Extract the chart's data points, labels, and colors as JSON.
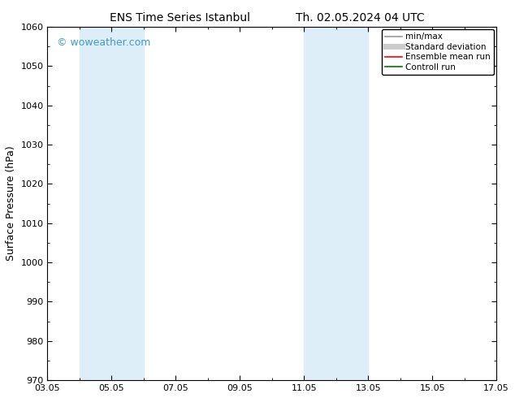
{
  "title_left": "ENS Time Series Istanbul",
  "title_right": "Th. 02.05.2024 04 UTC",
  "ylabel": "Surface Pressure (hPa)",
  "ylim": [
    970,
    1060
  ],
  "yticks": [
    970,
    980,
    990,
    1000,
    1010,
    1020,
    1030,
    1040,
    1050,
    1060
  ],
  "xlim": [
    0,
    14
  ],
  "xtick_labels": [
    "03.05",
    "05.05",
    "07.05",
    "09.05",
    "11.05",
    "13.05",
    "15.05",
    "17.05"
  ],
  "xtick_positions": [
    0,
    2,
    4,
    6,
    8,
    10,
    12,
    14
  ],
  "shade_bands": [
    {
      "start": 1.0,
      "end": 3.0
    },
    {
      "start": 8.0,
      "end": 10.0
    }
  ],
  "shade_color": "#ddeef8",
  "watermark_text": "© woweather.com",
  "watermark_color": "#4499cc",
  "background_color": "#ffffff",
  "legend_items": [
    {
      "label": "min/max",
      "color": "#999999",
      "lw": 1.2
    },
    {
      "label": "Standard deviation",
      "color": "#cccccc",
      "lw": 5
    },
    {
      "label": "Ensemble mean run",
      "color": "#ff0000",
      "lw": 1.2
    },
    {
      "label": "Controll run",
      "color": "#007700",
      "lw": 1.2
    }
  ],
  "title_fontsize": 10,
  "ylabel_fontsize": 9,
  "tick_fontsize": 8,
  "legend_fontsize": 7.5,
  "watermark_fontsize": 9
}
